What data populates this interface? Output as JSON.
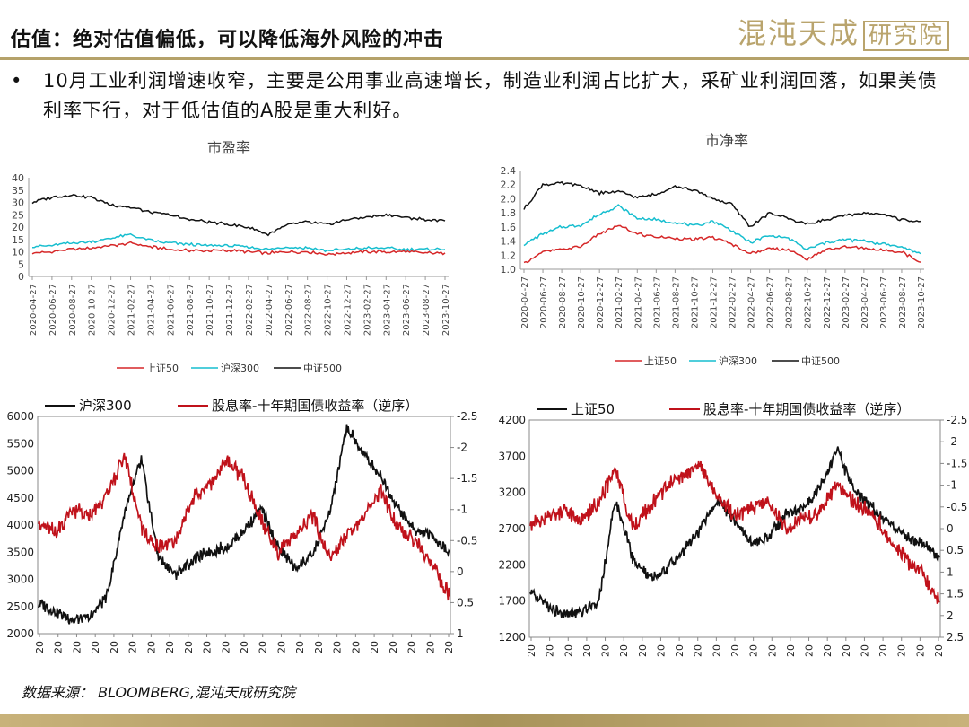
{
  "header": {
    "title": "估值：绝对估值偏低，可以降低海外风险的冲击",
    "logo_main": "混沌天成",
    "logo_sub": "研究院"
  },
  "bullet": {
    "dot": "•",
    "text": "10月工业利润增速收窄，主要是公用事业高速增长，制造业利润占比扩大，采矿业利润回落，如果美债利率下行，对于低估值的A股是重大利好。"
  },
  "source_note": "数据来源： BLOOMBERG,混沌天成研究院",
  "chart_data": [
    {
      "type": "line",
      "title": "市盈率",
      "ylim": [
        0,
        40
      ],
      "yticks": [
        "0",
        "5",
        "10",
        "15",
        "20",
        "25",
        "30",
        "35",
        "40"
      ],
      "x": [
        "2020-04-27",
        "2020-06-27",
        "2020-08-27",
        "2020-10-27",
        "2020-12-27",
        "2021-02-27",
        "2021-04-27",
        "2021-06-27",
        "2021-08-27",
        "2021-10-27",
        "2021-12-27",
        "2022-02-27",
        "2022-04-27",
        "2022-06-27",
        "2022-08-27",
        "2022-10-27",
        "2022-12-27",
        "2023-02-27",
        "2023-04-27",
        "2023-06-27",
        "2023-08-27",
        "2023-10-27"
      ],
      "legend_position": "bottom",
      "series": [
        {
          "name": "上证50",
          "color": "#d62728",
          "values": [
            9.5,
            10,
            11,
            11.5,
            12.5,
            13.5,
            12,
            11,
            10.5,
            10.5,
            10.5,
            10,
            9.5,
            10,
            10,
            9,
            9.5,
            10,
            10,
            10,
            9.5,
            9.5
          ]
        },
        {
          "name": "沪深300",
          "color": "#17becf",
          "values": [
            12,
            12.5,
            13.5,
            14,
            15.5,
            17,
            14.5,
            13.5,
            13,
            12.5,
            12.5,
            12,
            11,
            12,
            11.5,
            10.5,
            11,
            11.5,
            11.5,
            11,
            11,
            11
          ]
        },
        {
          "name": "中证500",
          "color": "#111111",
          "values": [
            30,
            32,
            33,
            32,
            29,
            28,
            26,
            25,
            23,
            22,
            21,
            20,
            17,
            21,
            22,
            21,
            23,
            24,
            25,
            24,
            23,
            22.5
          ]
        }
      ]
    },
    {
      "type": "line",
      "title": "市净率",
      "ylim": [
        1.0,
        2.4
      ],
      "yticks": [
        "1.0",
        "1.2",
        "1.4",
        "1.6",
        "1.8",
        "2.0",
        "2.2",
        "2.4"
      ],
      "x": [
        "2020-04-27",
        "2020-06-27",
        "2020-08-27",
        "2020-10-27",
        "2020-12-27",
        "2021-02-27",
        "2021-04-27",
        "2021-06-27",
        "2021-08-27",
        "2021-10-27",
        "2021-12-27",
        "2022-02-27",
        "2022-04-27",
        "2022-06-27",
        "2022-08-27",
        "2022-10-27",
        "2022-12-27",
        "2023-02-27",
        "2023-04-27",
        "2023-06-27",
        "2023-08-27",
        "2023-10-27"
      ],
      "legend_position": "bottom",
      "series": [
        {
          "name": "上证50",
          "color": "#d62728",
          "values": [
            1.08,
            1.25,
            1.28,
            1.32,
            1.5,
            1.62,
            1.5,
            1.46,
            1.44,
            1.42,
            1.45,
            1.36,
            1.22,
            1.3,
            1.28,
            1.14,
            1.28,
            1.32,
            1.3,
            1.27,
            1.25,
            1.1
          ]
        },
        {
          "name": "沪深300",
          "color": "#17becf",
          "values": [
            1.35,
            1.5,
            1.6,
            1.62,
            1.78,
            1.9,
            1.72,
            1.7,
            1.66,
            1.62,
            1.68,
            1.55,
            1.38,
            1.48,
            1.44,
            1.28,
            1.38,
            1.42,
            1.4,
            1.36,
            1.32,
            1.22
          ]
        },
        {
          "name": "中证500",
          "color": "#111111",
          "values": [
            1.85,
            2.2,
            2.22,
            2.18,
            2.08,
            2.1,
            2.02,
            2.06,
            2.18,
            2.12,
            2.0,
            1.92,
            1.6,
            1.8,
            1.72,
            1.64,
            1.7,
            1.76,
            1.8,
            1.78,
            1.7,
            1.68
          ]
        }
      ]
    },
    {
      "type": "line",
      "ylim": [
        2000,
        6000
      ],
      "yticks": [
        "2000",
        "2500",
        "3000",
        "3500",
        "4000",
        "4500",
        "5000",
        "5500",
        "6000"
      ],
      "y2lim": [
        -2.5,
        1
      ],
      "y2_reversed": true,
      "y2ticks": [
        "-2.5",
        "-2",
        "-1.5",
        "-1",
        "-0.5",
        "0",
        "0.5",
        "1"
      ],
      "xtick_label": "20",
      "xtick_count": 23,
      "legend_position": "top",
      "series": [
        {
          "name": "沪深300",
          "color": "#111111",
          "axis": "left",
          "values": [
            2550,
            2400,
            2250,
            2300,
            2700,
            4200,
            5200,
            3400,
            3100,
            3350,
            3500,
            3600,
            3900,
            4300,
            3600,
            3200,
            3450,
            4200,
            5800,
            5300,
            4900,
            4300,
            3900,
            3800,
            3500
          ]
        },
        {
          "name": "股息率-十年期国债收益率（逆序）",
          "color": "#c0121b",
          "axis": "right",
          "values": [
            -0.8,
            -0.6,
            -1.0,
            -0.9,
            -1.2,
            -1.9,
            -0.7,
            -0.4,
            -0.5,
            -1.2,
            -1.4,
            -1.8,
            -1.5,
            -0.8,
            -0.3,
            -0.6,
            -0.9,
            -0.2,
            -0.6,
            -0.9,
            -1.3,
            -0.7,
            -0.5,
            -0.1,
            0.4
          ]
        }
      ]
    },
    {
      "type": "line",
      "ylim": [
        1200,
        4200
      ],
      "yticks": [
        "1200",
        "1700",
        "2200",
        "2700",
        "3200",
        "3700",
        "4200"
      ],
      "y2lim": [
        -2.5,
        2.5
      ],
      "y2_reversed": true,
      "y2ticks": [
        "-2.5",
        "-2",
        "-1.5",
        "-1",
        "-0.5",
        "0",
        "0.5",
        "1",
        "1.5",
        "2",
        "2.5"
      ],
      "xtick_label": "20",
      "xtick_count": 23,
      "legend_position": "top",
      "series": [
        {
          "name": "上证50",
          "color": "#111111",
          "axis": "left",
          "values": [
            1800,
            1650,
            1500,
            1550,
            1700,
            3100,
            2300,
            2000,
            2150,
            2400,
            2700,
            3100,
            2800,
            2500,
            2600,
            2900,
            3000,
            3250,
            3800,
            3200,
            3000,
            2800,
            2600,
            2500,
            2300
          ]
        },
        {
          "name": "股息率-十年期国债收益率（逆序）",
          "color": "#c0121b",
          "axis": "right",
          "values": [
            -0.1,
            -0.3,
            -0.4,
            -0.2,
            -0.6,
            -1.4,
            0.0,
            -0.5,
            -1.0,
            -1.2,
            -1.4,
            -0.7,
            -0.3,
            -0.5,
            -0.6,
            0.0,
            -0.2,
            -0.4,
            -1.0,
            -0.6,
            -0.4,
            0.2,
            0.7,
            1.0,
            1.7
          ]
        }
      ]
    }
  ]
}
